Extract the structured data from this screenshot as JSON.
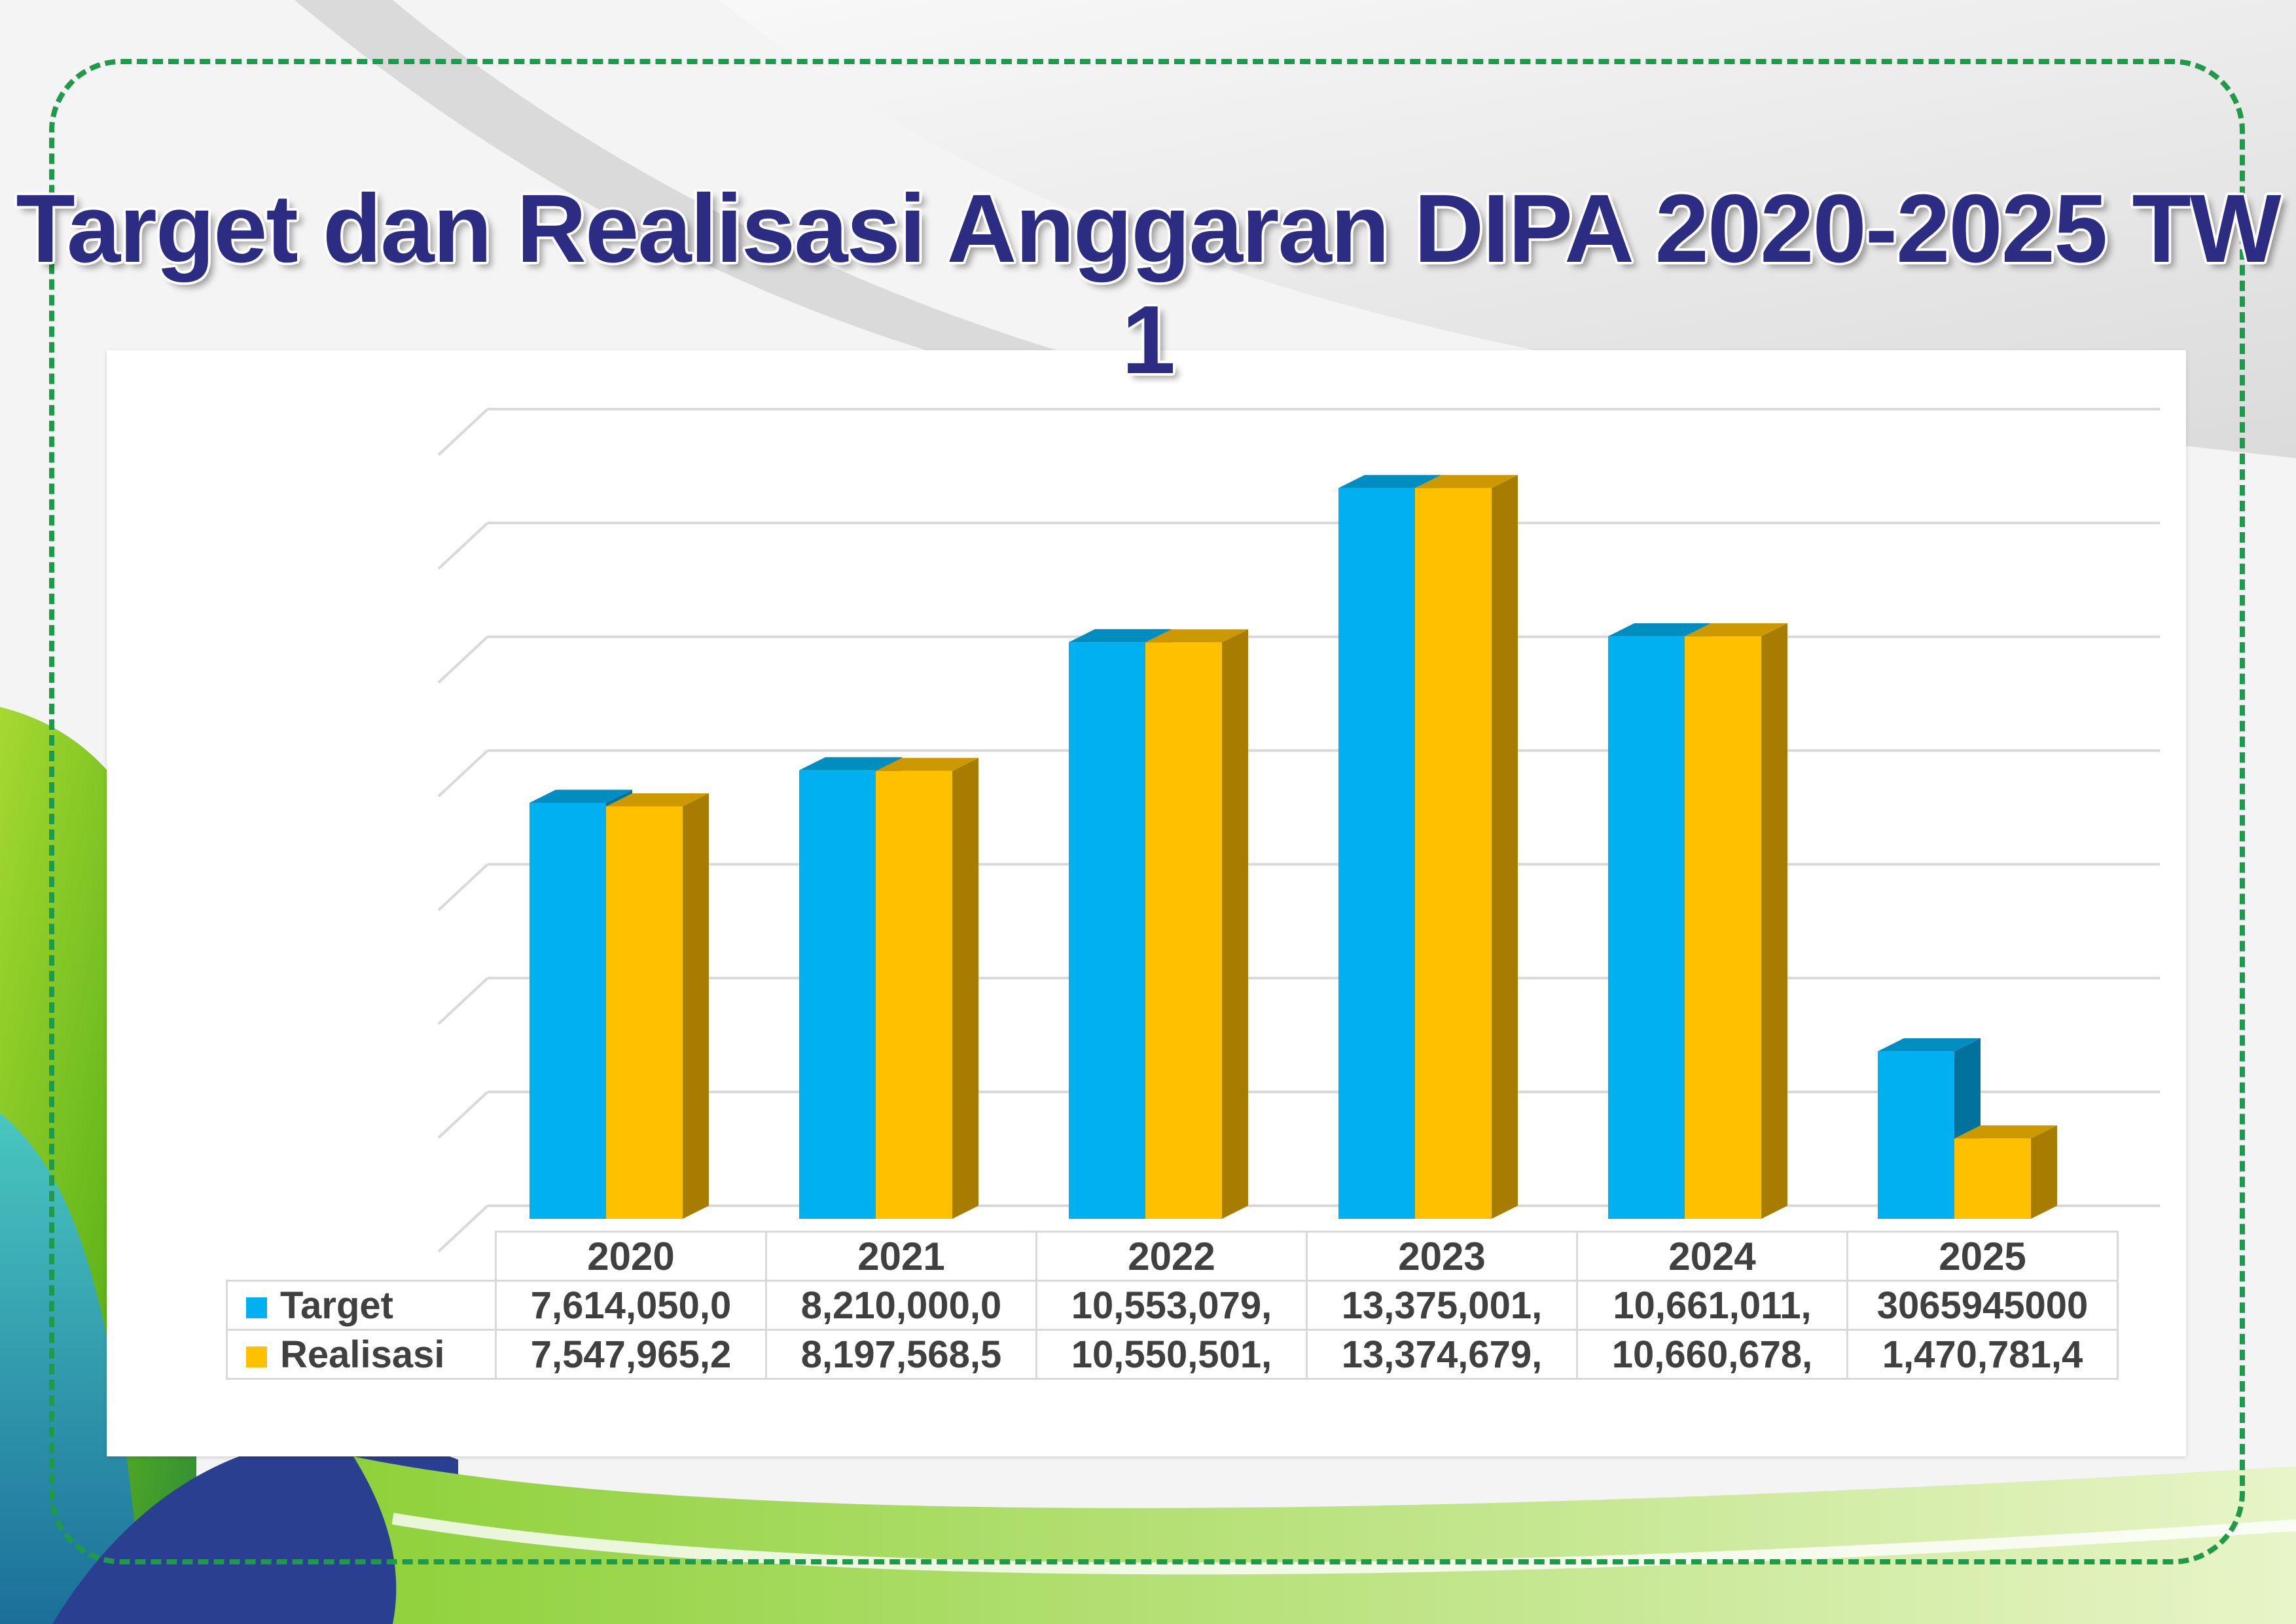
{
  "title": "Target dan Realisasi Anggaran DIPA 2020-2025 TW 1",
  "colors": {
    "target": "#00B0F0",
    "realisasi": "#FFC000",
    "title": "#2B2C82",
    "frame": "#1F9A4A"
  },
  "table": {
    "years": [
      "2020",
      "2021",
      "2022",
      "2023",
      "2024",
      "2025"
    ],
    "rows": [
      {
        "label": "Target",
        "cells": [
          "7,614,050,0",
          "8,210,000,0",
          "10,553,079,",
          "13,375,001,",
          "10,661,011,",
          "3065945000"
        ]
      },
      {
        "label": "Realisasi",
        "cells": [
          "7,547,965,2",
          "8,197,568,5",
          "10,550,501,",
          "13,374,679,",
          "10,660,678,",
          "1,470,781,4"
        ]
      }
    ]
  },
  "chart_data": {
    "type": "bar",
    "categories": [
      "2020",
      "2021",
      "2022",
      "2023",
      "2024",
      "2025"
    ],
    "series": [
      {
        "name": "Target",
        "values": [
          7614050000,
          8210000000,
          10553079000,
          13375001000,
          10661011000,
          3065945000
        ]
      },
      {
        "name": "Realisasi",
        "values": [
          7547965200,
          8197568500,
          10550501000,
          13374679000,
          10660678000,
          1470781400
        ]
      }
    ],
    "title": "Target dan Realisasi Anggaran DIPA 2020-2025 TW 1",
    "xlabel": "",
    "ylabel": "",
    "ylim": [
      0,
      14580000000
    ],
    "grid": true,
    "legend": "data-table",
    "style": "3d-clustered"
  }
}
